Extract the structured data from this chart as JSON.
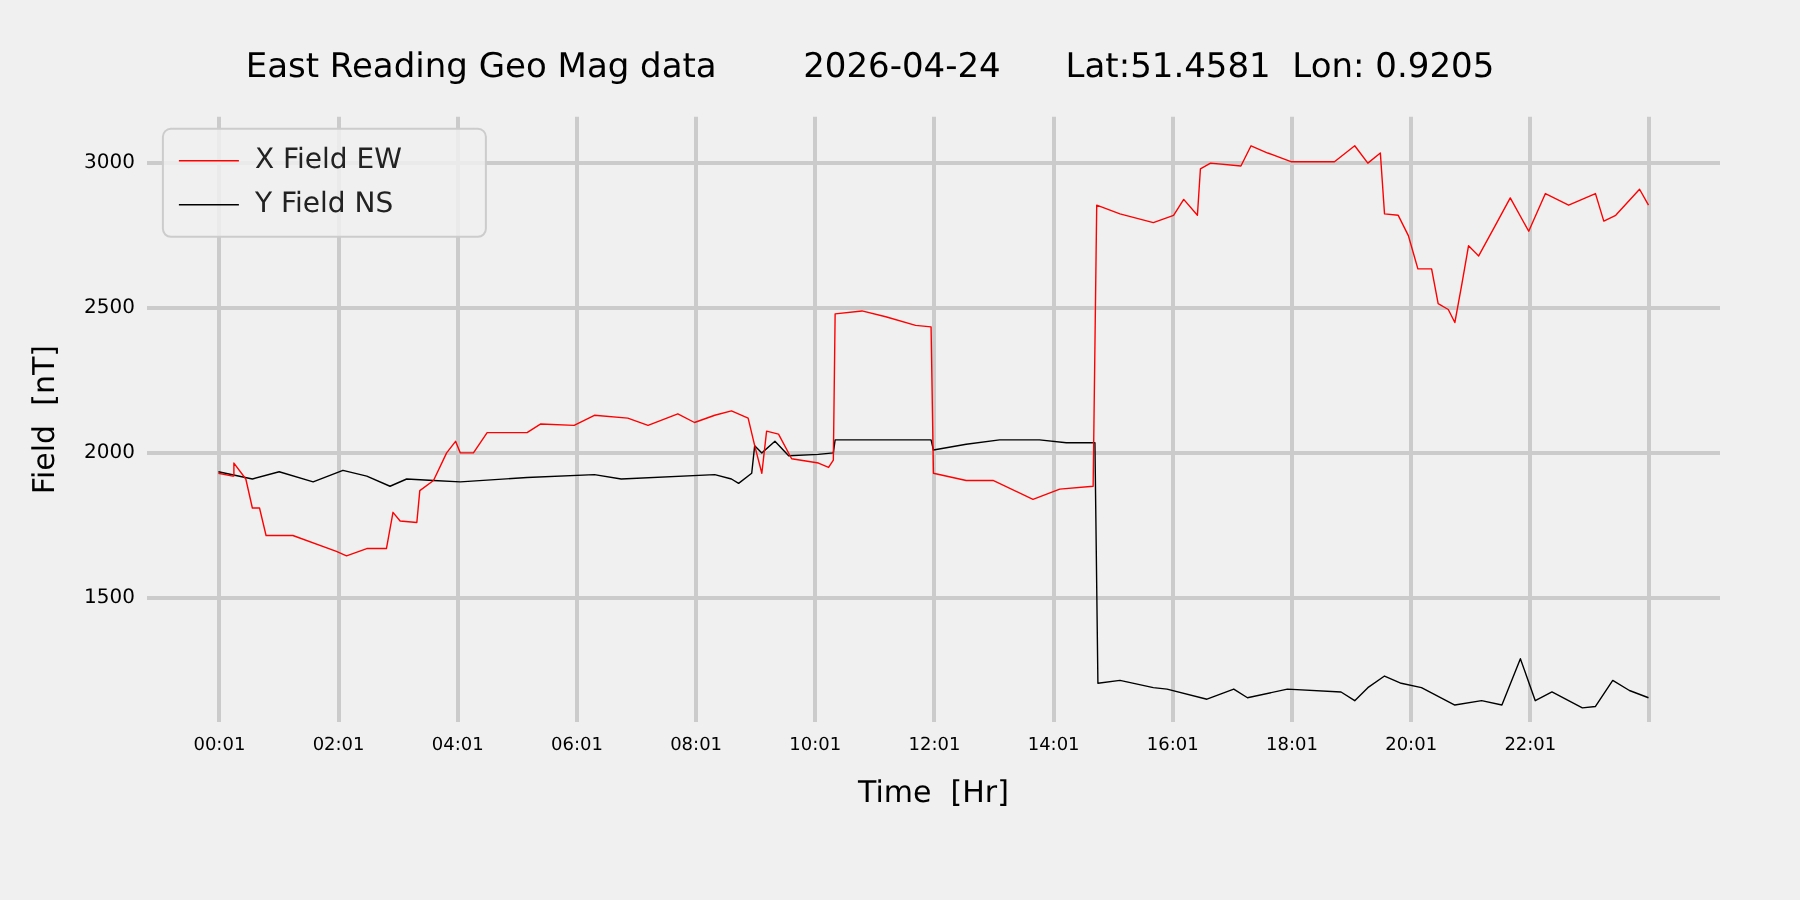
{
  "chart_data": {
    "type": "line",
    "title": "East Reading Geo Mag data        2026-04-24      Lat:51.4581  Lon: 0.9205",
    "xlabel": "Time  [Hr]",
    "ylabel": "Field  [nT]",
    "xlim": [
      -1.2,
      25.2
    ],
    "ylim": [
      1070,
      3160
    ],
    "xticks": [
      {
        "value": 0.0167,
        "label": "00:01"
      },
      {
        "value": 2.0167,
        "label": "02:01"
      },
      {
        "value": 4.0167,
        "label": "04:01"
      },
      {
        "value": 6.0167,
        "label": "06:01"
      },
      {
        "value": 8.0167,
        "label": "08:01"
      },
      {
        "value": 10.0167,
        "label": "10:01"
      },
      {
        "value": 12.0167,
        "label": "12:01"
      },
      {
        "value": 14.0167,
        "label": "14:01"
      },
      {
        "value": 16.0167,
        "label": "16:01"
      },
      {
        "value": 18.0167,
        "label": "18:01"
      },
      {
        "value": 20.0167,
        "label": "20:01"
      },
      {
        "value": 22.0167,
        "label": "22:01"
      },
      {
        "value": 24.0167,
        "label": null
      }
    ],
    "yticks": [
      1500,
      2000,
      2500,
      3000
    ],
    "grid": true,
    "legend": "top left",
    "marker": "none",
    "line_style": "solid",
    "series": [
      {
        "name": "X Field EW",
        "color": "#ff0000",
        "x": [
          0,
          0.24,
          0.26,
          0.46,
          0.57,
          0.69,
          0.8,
          1.25,
          1.98,
          2.15,
          2.49,
          2.82,
          2.93,
          3.05,
          3.33,
          3.38,
          3.61,
          3.83,
          3.98,
          4.06,
          4.28,
          4.51,
          5.18,
          5.41,
          5.97,
          6.31,
          6.87,
          7.21,
          7.71,
          7.99,
          8.33,
          8.61,
          8.89,
          9.0,
          9.12,
          9.2,
          9.4,
          9.62,
          10.07,
          10.24,
          10.32,
          10.35,
          10.8,
          11.2,
          11.7,
          11.96,
          12.0,
          12.55,
          13.0,
          13.67,
          14.12,
          14.68,
          14.74,
          15.13,
          15.69,
          16.03,
          16.2,
          16.43,
          16.48,
          16.65,
          17.16,
          17.33,
          17.61,
          18.0,
          18.73,
          19.07,
          19.29,
          19.5,
          19.57,
          19.8,
          19.97,
          20.13,
          20.36,
          20.47,
          20.64,
          20.75,
          20.87,
          20.98,
          21.15,
          21.43,
          21.68,
          21.99,
          22.27,
          22.66,
          23.11,
          23.25,
          23.45,
          23.85,
          24.0
        ],
        "values": [
          1930,
          1920,
          1965,
          1910,
          1810,
          1810,
          1715,
          1715,
          1660,
          1645,
          1670,
          1670,
          1795,
          1765,
          1760,
          1870,
          1905,
          2000,
          2040,
          2000,
          2000,
          2070,
          2070,
          2100,
          2095,
          2130,
          2120,
          2095,
          2135,
          2105,
          2130,
          2145,
          2120,
          2025,
          1930,
          2075,
          2065,
          1980,
          1965,
          1950,
          1975,
          2480,
          2490,
          2470,
          2440,
          2435,
          1930,
          1905,
          1905,
          1840,
          1875,
          1885,
          2855,
          2825,
          2795,
          2820,
          2875,
          2820,
          2980,
          3000,
          2990,
          3060,
          3035,
          3005,
          3005,
          3060,
          3000,
          3035,
          2825,
          2820,
          2750,
          2635,
          2635,
          2515,
          2495,
          2450,
          2585,
          2715,
          2680,
          2785,
          2880,
          2765,
          2895,
          2855,
          2895,
          2800,
          2820,
          2910,
          2855
        ]
      },
      {
        "name": "Y Field NS",
        "color": "#000000",
        "x": [
          0,
          0.57,
          1.02,
          1.59,
          2.09,
          2.49,
          2.88,
          3.16,
          3.61,
          4.06,
          5.18,
          6.31,
          6.76,
          8.33,
          8.61,
          8.73,
          8.95,
          9.0,
          9.12,
          9.34,
          9.57,
          10.07,
          10.32,
          10.35,
          11.96,
          12.0,
          12.55,
          13.11,
          13.78,
          14.23,
          14.71,
          14.76,
          15.13,
          15.69,
          15.92,
          16.59,
          17.04,
          17.27,
          17.94,
          18.84,
          19.07,
          19.29,
          19.57,
          19.85,
          20.19,
          20.75,
          21.2,
          21.54,
          21.85,
          22.1,
          22.38,
          22.89,
          23.11,
          23.4,
          23.68,
          24.0
        ],
        "values": [
          1935,
          1910,
          1935,
          1900,
          1940,
          1920,
          1885,
          1910,
          1905,
          1900,
          1915,
          1925,
          1910,
          1925,
          1910,
          1895,
          1930,
          2025,
          2000,
          2040,
          1990,
          1995,
          2000,
          2045,
          2045,
          2010,
          2030,
          2045,
          2045,
          2035,
          2035,
          1205,
          1215,
          1190,
          1185,
          1150,
          1185,
          1155,
          1185,
          1175,
          1145,
          1190,
          1230,
          1205,
          1190,
          1130,
          1145,
          1130,
          1290,
          1145,
          1175,
          1120,
          1125,
          1215,
          1180,
          1155
        ]
      }
    ]
  }
}
